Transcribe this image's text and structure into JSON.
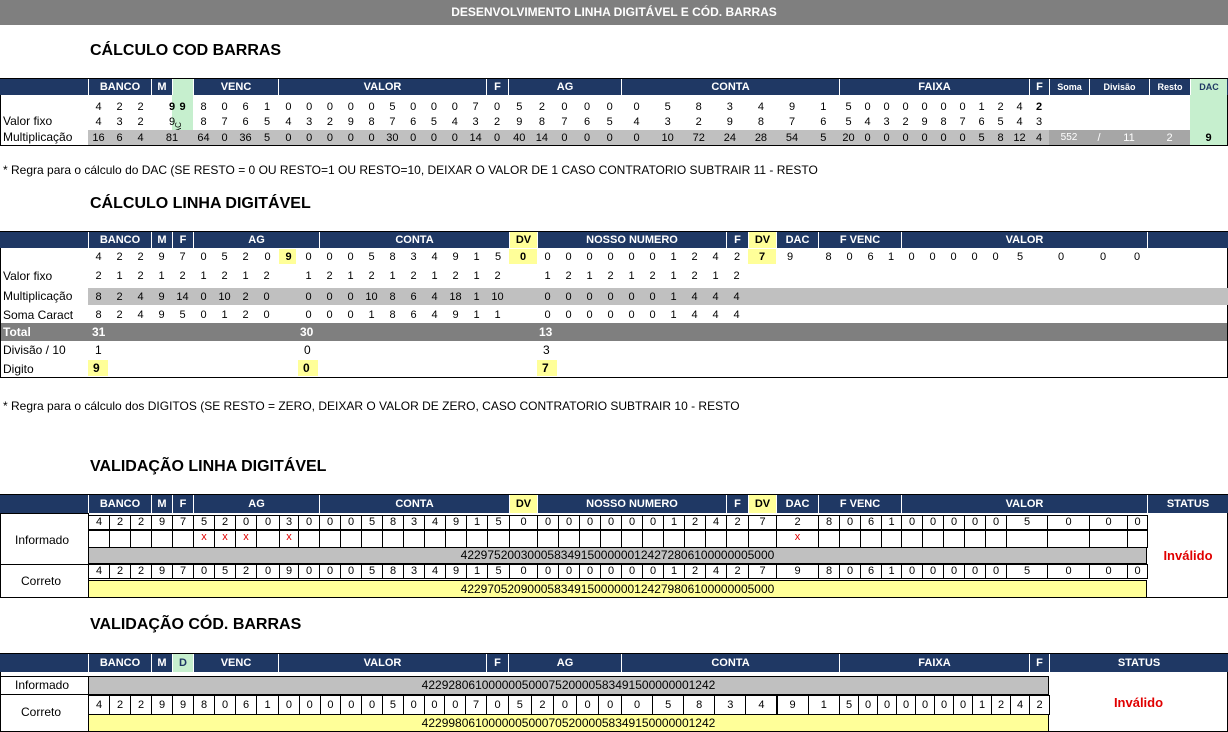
{
  "banner": "DESENVOLVIMENTO LINHA DIGITÁVEL E CÓD. BARRAS",
  "s1": {
    "title": "CÁLCULO COD BARRAS",
    "headers": [
      "BANCO",
      "M",
      "",
      "VENC",
      "VALOR",
      "F",
      "AG",
      "CONTA",
      "FAIXA",
      "F",
      "Soma",
      "Divisão",
      "Resto",
      "DAC"
    ],
    "dac_vertical": "DAC",
    "labels": [
      "Valor fixo",
      "Multiplicação"
    ],
    "row1": [
      "4",
      "2",
      "2",
      "9",
      "8",
      "0",
      "6",
      "1",
      "0",
      "0",
      "0",
      "0",
      "0",
      "5",
      "0",
      "0",
      "0",
      "7",
      "0",
      "5",
      "2",
      "0",
      "0",
      "0",
      "0",
      "5",
      "8",
      "3",
      "4",
      "9",
      "1",
      "5",
      "0",
      "0",
      "0",
      "0",
      "0",
      "0",
      "1",
      "2",
      "4",
      "2"
    ],
    "dac_top": "9",
    "row2": [
      "4",
      "3",
      "2",
      "9",
      "8",
      "7",
      "6",
      "5",
      "4",
      "3",
      "2",
      "9",
      "8",
      "7",
      "6",
      "5",
      "4",
      "3",
      "2",
      "9",
      "8",
      "7",
      "6",
      "5",
      "4",
      "3",
      "2",
      "9",
      "8",
      "7",
      "6",
      "5",
      "4",
      "3",
      "2",
      "9",
      "8",
      "7",
      "6",
      "5",
      "4",
      "3"
    ],
    "row3": [
      "16",
      "6",
      "4",
      "81",
      "64",
      "0",
      "36",
      "5",
      "0",
      "0",
      "0",
      "0",
      "0",
      "30",
      "0",
      "0",
      "0",
      "14",
      "0",
      "40",
      "14",
      "0",
      "0",
      "0",
      "0",
      "10",
      "72",
      "24",
      "28",
      "54",
      "5",
      "20",
      "0",
      "0",
      "0",
      "0",
      "0",
      "0",
      "5",
      "8",
      "12",
      "4"
    ],
    "soma": "552",
    "divisao": "/",
    "divisao_val": "11",
    "resto": "2",
    "dac": "9",
    "note": "* Regra para o cálculo do DAC (SE RESTO = 0 OU RESTO=1 OU RESTO=10, DEIXAR O VALOR DE 1 CASO CONTRATORIO SUBTRAIR 11 - RESTO"
  },
  "s2": {
    "title": "CÁLCULO LINHA DIGITÁVEL",
    "headers": [
      "BANCO",
      "M",
      "F",
      "AG",
      "CONTA",
      "DV",
      "NOSSO NUMERO",
      "F",
      "DV",
      "DAC",
      "F VENC",
      "VALOR"
    ],
    "row1": [
      "4",
      "2",
      "2",
      "9",
      "7",
      "0",
      "5",
      "2",
      "0",
      "9",
      "0",
      "0",
      "0",
      "5",
      "8",
      "3",
      "4",
      "9",
      "1",
      "5",
      "0",
      "0",
      "0",
      "0",
      "0",
      "0",
      "0",
      "1",
      "2",
      "4",
      "2",
      "7",
      "9",
      "8",
      "0",
      "6",
      "1",
      "0",
      "0",
      "0",
      "0",
      "0",
      "5",
      "0",
      "0",
      "0"
    ],
    "labels": [
      "Valor fixo",
      "Multiplicação",
      "Soma Caract",
      "Total",
      "Divisão / 10",
      "Digito"
    ],
    "fixo": [
      "2",
      "1",
      "2",
      "1",
      "2",
      "1",
      "2",
      "1",
      "2",
      "",
      "1",
      "2",
      "1",
      "2",
      "1",
      "2",
      "1",
      "2",
      "1",
      "2",
      "",
      "1",
      "2",
      "1",
      "2",
      "1",
      "2",
      "1",
      "2",
      "1",
      "2"
    ],
    "mult": [
      "8",
      "2",
      "4",
      "9",
      "14",
      "0",
      "10",
      "2",
      "0",
      "",
      "0",
      "0",
      "0",
      "10",
      "8",
      "6",
      "4",
      "18",
      "1",
      "10",
      "",
      "0",
      "0",
      "0",
      "0",
      "0",
      "0",
      "1",
      "4",
      "4",
      "4"
    ],
    "soma": [
      "8",
      "2",
      "4",
      "9",
      "5",
      "0",
      "1",
      "2",
      "0",
      "",
      "0",
      "0",
      "0",
      "1",
      "8",
      "6",
      "4",
      "9",
      "1",
      "1",
      "",
      "0",
      "0",
      "0",
      "0",
      "0",
      "0",
      "1",
      "4",
      "4",
      "4"
    ],
    "totals": [
      "31",
      "30",
      "13"
    ],
    "divisao": [
      "1",
      "0",
      "3"
    ],
    "digito": [
      "9",
      "0",
      "7"
    ],
    "note": "* Regra para o cálculo dos DIGITOS (SE RESTO = ZERO, DEIXAR O VALOR DE ZERO, CASO CONTRATORIO SUBTRAIR 10 - RESTO"
  },
  "s3": {
    "title": "VALIDAÇÃO LINHA DIGITÁVEL",
    "headers": [
      "BANCO",
      "M",
      "F",
      "AG",
      "CONTA",
      "DV",
      "NOSSO NUMERO",
      "F",
      "DV",
      "DAC",
      "F VENC",
      "VALOR",
      "STATUS"
    ],
    "informado_label": "Informado",
    "correto_label": "Correto",
    "informado": [
      "4",
      "2",
      "2",
      "9",
      "7",
      "5",
      "2",
      "0",
      "0",
      "3",
      "0",
      "0",
      "0",
      "5",
      "8",
      "3",
      "4",
      "9",
      "1",
      "5",
      "0",
      "0",
      "0",
      "0",
      "0",
      "0",
      "0",
      "1",
      "2",
      "4",
      "2",
      "7",
      "2",
      "8",
      "0",
      "6",
      "1",
      "0",
      "0",
      "0",
      "0",
      "0",
      "5",
      "0",
      "0",
      "0"
    ],
    "x_mark": "x",
    "informado_full": "42297520030005834915000000124272806100000005000",
    "correto": [
      "4",
      "2",
      "2",
      "9",
      "7",
      "0",
      "5",
      "2",
      "0",
      "9",
      "0",
      "0",
      "0",
      "5",
      "8",
      "3",
      "4",
      "9",
      "1",
      "5",
      "0",
      "0",
      "0",
      "0",
      "0",
      "0",
      "0",
      "1",
      "2",
      "4",
      "2",
      "7",
      "9",
      "8",
      "0",
      "6",
      "1",
      "0",
      "0",
      "0",
      "0",
      "0",
      "5",
      "0",
      "0",
      "0"
    ],
    "correto_full": "42297052090005834915000000124279806100000005000",
    "status": "Inválido"
  },
  "s4": {
    "title": "VALIDAÇÃO CÓD. BARRAS",
    "headers": [
      "BANCO",
      "M",
      "D",
      "VENC",
      "VALOR",
      "F",
      "AG",
      "CONTA",
      "FAIXA",
      "F",
      "STATUS"
    ],
    "informado_label": "Informado",
    "correto_label": "Correto",
    "informado_full": "42292806100000050007520000583491500000001242",
    "correto": [
      "4",
      "2",
      "2",
      "9",
      "9",
      "8",
      "0",
      "6",
      "1",
      "0",
      "0",
      "0",
      "0",
      "0",
      "5",
      "0",
      "0",
      "0",
      "7",
      "0",
      "5",
      "2",
      "0",
      "0",
      "0",
      "0",
      "5",
      "8",
      "3",
      "4",
      "9",
      "1",
      "5",
      "0",
      "0",
      "0",
      "0",
      "0",
      "0",
      "1",
      "2",
      "4",
      "2"
    ],
    "correto_full": "42299806100000050007052000058349150000001242",
    "status": "Inválido"
  }
}
